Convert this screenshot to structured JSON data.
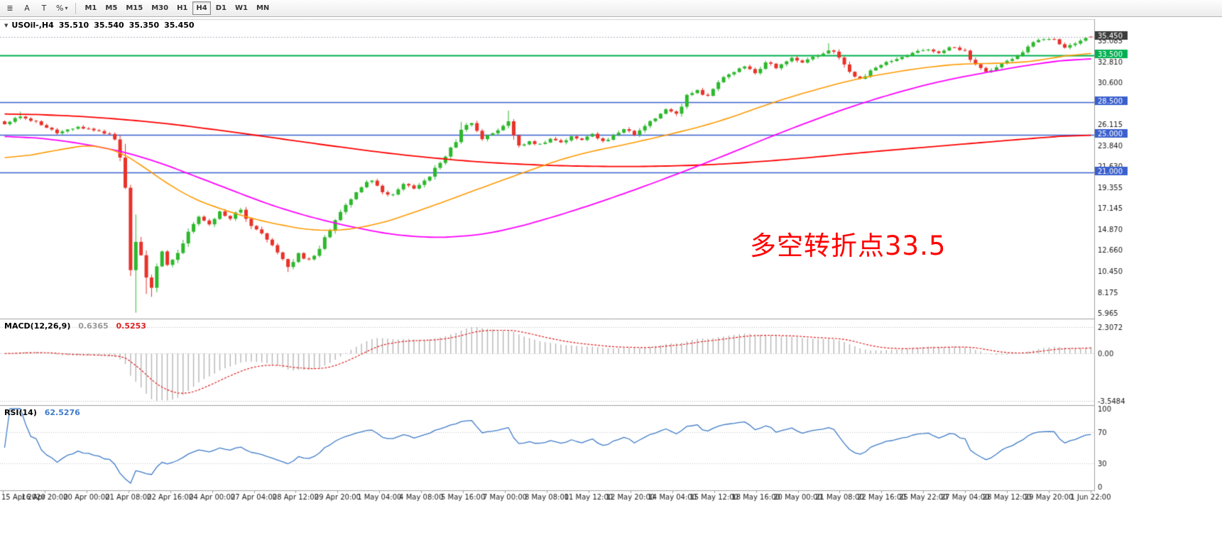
{
  "toolbar": {
    "icon_buttons": [
      {
        "name": "objects",
        "glyph": "≣"
      },
      {
        "name": "text",
        "glyph": "A"
      },
      {
        "name": "template",
        "glyph": "T"
      },
      {
        "name": "indicators",
        "glyph": "%"
      }
    ],
    "dropdown_caret": "▾",
    "timeframes": [
      {
        "label": "M1",
        "active": false
      },
      {
        "label": "M5",
        "active": false
      },
      {
        "label": "M15",
        "active": false
      },
      {
        "label": "M30",
        "active": false
      },
      {
        "label": "H1",
        "active": false
      },
      {
        "label": "H4",
        "active": true
      },
      {
        "label": "D1",
        "active": false
      },
      {
        "label": "W1",
        "active": false
      },
      {
        "label": "MN",
        "active": false
      }
    ]
  },
  "chart_header": {
    "collapse_icon": "▼",
    "symbol": "USOil-,H4",
    "open": "35.510",
    "high": "35.540",
    "low": "35.350",
    "close": "35.450"
  },
  "main_chart": {
    "annotation": {
      "text": "多空转折点33.5",
      "color": "#FF0000"
    },
    "current_price": {
      "label": "35.450",
      "value": 35.45,
      "box_color": "#3c3c3c"
    },
    "hlines": [
      {
        "value": 33.5,
        "label": "33.500",
        "color": "#00B050",
        "width": 2
      },
      {
        "value": 28.5,
        "label": "28.500",
        "color": "#3A5FCD",
        "width": 1.6
      },
      {
        "value": 25.0,
        "label": "25.000",
        "color": "#3A5FCD",
        "width": 1.6
      },
      {
        "value": 21.0,
        "label": "21.000",
        "color": "#3A5FCD",
        "width": 1.6
      }
    ],
    "price_ticks": [
      "35.085",
      "32.810",
      "30.600",
      "26.115",
      "23.840",
      "21.630",
      "19.355",
      "17.145",
      "14.870",
      "12.660",
      "10.450",
      "8.175",
      "5.965"
    ],
    "price_top": 37.3,
    "price_bottom": 5.45
  },
  "macd_panel": {
    "label": "MACD(12,26,9)",
    "main_value": "0.6365",
    "signal_value": "0.5253",
    "ticks": {
      "top": "2.3072",
      "zero": "0.00",
      "bottom": "-3.5484"
    },
    "colors": {
      "hist": "#b5b5b5",
      "signal": "#e02020"
    }
  },
  "rsi_panel": {
    "label": "RSI(14)",
    "value": "62.5276",
    "ticks": [
      "100",
      "70",
      "30",
      "0"
    ],
    "levels": [
      70,
      30
    ],
    "color": "#3e7bc8"
  },
  "time_axis": [
    "15 Apr 2020",
    "16 Apr 20:00",
    "20 Apr 00:00",
    "21 Apr 08:00",
    "22 Apr 16:00",
    "24 Apr 00:00",
    "27 Apr 04:00",
    "28 Apr 12:00",
    "29 Apr 20:00",
    "1 May 04:00",
    "4 May 08:00",
    "5 May 16:00",
    "7 May 00:00",
    "8 May 08:00",
    "11 May 12:00",
    "12 May 20:00",
    "14 May 04:00",
    "15 May 12:00",
    "18 May 16:00",
    "20 May 00:00",
    "21 May 08:00",
    "22 May 16:00",
    "25 May 22:00",
    "27 May 04:00",
    "28 May 12:00",
    "29 May 20:00",
    "1 Jun 22:00"
  ],
  "chart_data": {
    "type": "candlestick",
    "symbol": "USOil",
    "timeframe": "H4",
    "ohlc_current": {
      "open": 35.51,
      "high": 35.54,
      "low": 35.35,
      "close": 35.45
    },
    "bars": 208,
    "noise_seed": 12,
    "price_keyframes": [
      [
        0,
        26.2
      ],
      [
        2,
        26.8
      ],
      [
        3,
        27.0
      ],
      [
        5,
        26.6
      ],
      [
        7,
        26.1
      ],
      [
        10,
        25.2
      ],
      [
        12,
        25.5
      ],
      [
        14,
        25.9
      ],
      [
        16,
        25.6
      ],
      [
        18,
        25.4
      ],
      [
        20,
        25.0
      ],
      [
        21,
        24.6
      ],
      [
        22,
        23.0
      ],
      [
        23,
        20.0
      ],
      [
        24,
        10.5
      ],
      [
        25,
        13.5
      ],
      [
        26,
        11.8
      ],
      [
        27,
        9.8
      ],
      [
        28,
        8.6
      ],
      [
        29,
        11.0
      ],
      [
        30,
        12.6
      ],
      [
        31,
        11.2
      ],
      [
        32,
        11.8
      ],
      [
        33,
        12.5
      ],
      [
        34,
        13.4
      ],
      [
        35,
        14.5
      ],
      [
        36,
        15.4
      ],
      [
        37,
        16.3
      ],
      [
        38,
        15.8
      ],
      [
        39,
        15.5
      ],
      [
        40,
        16.2
      ],
      [
        41,
        16.9
      ],
      [
        42,
        16.4
      ],
      [
        43,
        16.0
      ],
      [
        44,
        16.6
      ],
      [
        45,
        17.1
      ],
      [
        46,
        16.2
      ],
      [
        47,
        15.3
      ],
      [
        48,
        14.9
      ],
      [
        49,
        14.5
      ],
      [
        50,
        13.8
      ],
      [
        51,
        13.2
      ],
      [
        52,
        12.5
      ],
      [
        53,
        11.9
      ],
      [
        54,
        10.9
      ],
      [
        55,
        11.6
      ],
      [
        56,
        12.3
      ],
      [
        57,
        11.9
      ],
      [
        58,
        11.6
      ],
      [
        59,
        12.2
      ],
      [
        60,
        13.0
      ],
      [
        61,
        13.9
      ],
      [
        62,
        14.8
      ],
      [
        63,
        15.8
      ],
      [
        64,
        16.9
      ],
      [
        65,
        17.5
      ],
      [
        66,
        18.0
      ],
      [
        67,
        18.7
      ],
      [
        68,
        19.4
      ],
      [
        69,
        19.9
      ],
      [
        70,
        20.2
      ],
      [
        71,
        19.6
      ],
      [
        72,
        19.0
      ],
      [
        73,
        18.7
      ],
      [
        74,
        18.6
      ],
      [
        75,
        19.2
      ],
      [
        76,
        19.8
      ],
      [
        77,
        19.5
      ],
      [
        78,
        19.3
      ],
      [
        79,
        19.7
      ],
      [
        80,
        20.1
      ],
      [
        81,
        20.7
      ],
      [
        82,
        21.4
      ],
      [
        83,
        22.1
      ],
      [
        84,
        22.8
      ],
      [
        85,
        23.5
      ],
      [
        86,
        24.2
      ],
      [
        87,
        25.7
      ],
      [
        88,
        26.0
      ],
      [
        89,
        26.2
      ],
      [
        90,
        25.4
      ],
      [
        91,
        24.6
      ],
      [
        92,
        24.9
      ],
      [
        93,
        25.2
      ],
      [
        94,
        25.5
      ],
      [
        95,
        25.9
      ],
      [
        96,
        26.6
      ],
      [
        97,
        25.0
      ],
      [
        98,
        23.8
      ],
      [
        99,
        24.0
      ],
      [
        100,
        24.3
      ],
      [
        101,
        24.1
      ],
      [
        102,
        24.0
      ],
      [
        103,
        24.3
      ],
      [
        104,
        24.6
      ],
      [
        105,
        24.4
      ],
      [
        106,
        24.2
      ],
      [
        107,
        24.5
      ],
      [
        108,
        24.9
      ],
      [
        109,
        24.6
      ],
      [
        110,
        24.4
      ],
      [
        111,
        24.8
      ],
      [
        112,
        25.1
      ],
      [
        113,
        24.7
      ],
      [
        114,
        24.3
      ],
      [
        115,
        24.6
      ],
      [
        116,
        24.9
      ],
      [
        117,
        25.3
      ],
      [
        118,
        25.7
      ],
      [
        119,
        25.4
      ],
      [
        120,
        25.1
      ],
      [
        121,
        25.6
      ],
      [
        122,
        26.0
      ],
      [
        123,
        26.4
      ],
      [
        124,
        26.9
      ],
      [
        125,
        27.4
      ],
      [
        126,
        27.8
      ],
      [
        127,
        27.5
      ],
      [
        128,
        27.2
      ],
      [
        129,
        28.2
      ],
      [
        130,
        29.2
      ],
      [
        131,
        29.5
      ],
      [
        132,
        29.8
      ],
      [
        133,
        29.4
      ],
      [
        134,
        29.1
      ],
      [
        135,
        29.9
      ],
      [
        136,
        30.7
      ],
      [
        137,
        31.1
      ],
      [
        138,
        31.5
      ],
      [
        139,
        31.8
      ],
      [
        140,
        32.1
      ],
      [
        141,
        32.4
      ],
      [
        142,
        32.0
      ],
      [
        143,
        31.6
      ],
      [
        144,
        32.2
      ],
      [
        145,
        32.8
      ],
      [
        146,
        32.5
      ],
      [
        147,
        32.2
      ],
      [
        148,
        32.6
      ],
      [
        149,
        32.9
      ],
      [
        150,
        33.2
      ],
      [
        151,
        32.9
      ],
      [
        152,
        32.7
      ],
      [
        153,
        33.0
      ],
      [
        154,
        33.3
      ],
      [
        155,
        33.5
      ],
      [
        156,
        33.8
      ],
      [
        157,
        34.1
      ],
      [
        158,
        33.8
      ],
      [
        159,
        33.4
      ],
      [
        160,
        32.5
      ],
      [
        161,
        31.6
      ],
      [
        162,
        31.3
      ],
      [
        163,
        31.0
      ],
      [
        164,
        31.4
      ],
      [
        165,
        31.8
      ],
      [
        166,
        32.1
      ],
      [
        167,
        32.5
      ],
      [
        168,
        32.7
      ],
      [
        169,
        32.9
      ],
      [
        170,
        33.1
      ],
      [
        171,
        33.3
      ],
      [
        172,
        33.5
      ],
      [
        173,
        33.8
      ],
      [
        174,
        34.0
      ],
      [
        175,
        34.1
      ],
      [
        176,
        34.2
      ],
      [
        177,
        34.0
      ],
      [
        178,
        33.8
      ],
      [
        179,
        34.1
      ],
      [
        180,
        34.3
      ],
      [
        181,
        34.4
      ],
      [
        182,
        34.1
      ],
      [
        183,
        33.9
      ],
      [
        184,
        33.2
      ],
      [
        185,
        32.6
      ],
      [
        186,
        32.1
      ],
      [
        187,
        31.7
      ],
      [
        188,
        32.0
      ],
      [
        189,
        32.3
      ],
      [
        190,
        32.7
      ],
      [
        191,
        33.0
      ],
      [
        192,
        33.2
      ],
      [
        193,
        33.5
      ],
      [
        194,
        33.9
      ],
      [
        195,
        34.3
      ],
      [
        196,
        34.9
      ],
      [
        197,
        35.1
      ],
      [
        198,
        35.2
      ],
      [
        199,
        35.25
      ],
      [
        200,
        35.3
      ],
      [
        201,
        34.8
      ],
      [
        202,
        34.3
      ],
      [
        203,
        34.55
      ],
      [
        204,
        34.8
      ],
      [
        205,
        35.1
      ],
      [
        206,
        35.3
      ],
      [
        207,
        35.45
      ]
    ],
    "wick_overrides": [
      {
        "i": 3,
        "h": 27.5
      },
      {
        "i": 25,
        "l": 6.0,
        "h": 16.5
      },
      {
        "i": 27,
        "l": 8.0
      },
      {
        "i": 28,
        "l": 7.7
      },
      {
        "i": 54,
        "l": 10.35
      },
      {
        "i": 87,
        "h": 26.4
      },
      {
        "i": 96,
        "h": 27.6
      },
      {
        "i": 157,
        "h": 34.8
      }
    ],
    "last_bar": {
      "o": 35.51,
      "h": 35.54,
      "l": 35.35,
      "c": 35.45
    },
    "ma_red_keyframes": [
      [
        0,
        27.3
      ],
      [
        15,
        27.0
      ],
      [
        30,
        26.3
      ],
      [
        45,
        25.2
      ],
      [
        60,
        24.0
      ],
      [
        75,
        22.9
      ],
      [
        90,
        22.1
      ],
      [
        105,
        21.7
      ],
      [
        120,
        21.6
      ],
      [
        135,
        21.8
      ],
      [
        150,
        22.4
      ],
      [
        165,
        23.2
      ],
      [
        180,
        23.9
      ],
      [
        195,
        24.6
      ],
      [
        207,
        25.1
      ]
    ],
    "ma_magenta_keyframes": [
      [
        0,
        25.0
      ],
      [
        13,
        24.3
      ],
      [
        26,
        22.8
      ],
      [
        40,
        19.8
      ],
      [
        53,
        17.0
      ],
      [
        67,
        15.0
      ],
      [
        78,
        14.0
      ],
      [
        88,
        14.1
      ],
      [
        95,
        14.7
      ],
      [
        108,
        16.8
      ],
      [
        121,
        19.3
      ],
      [
        135,
        22.3
      ],
      [
        148,
        25.3
      ],
      [
        162,
        28.2
      ],
      [
        176,
        30.5
      ],
      [
        189,
        31.9
      ],
      [
        200,
        32.9
      ],
      [
        207,
        33.3
      ]
    ],
    "ma_orange_keyframes": [
      [
        0,
        22.3
      ],
      [
        10,
        23.4
      ],
      [
        19,
        24.2
      ],
      [
        27,
        21.5
      ],
      [
        34,
        18.5
      ],
      [
        47,
        16.0
      ],
      [
        60,
        14.6
      ],
      [
        70,
        15.2
      ],
      [
        81,
        17.3
      ],
      [
        94,
        20.0
      ],
      [
        108,
        22.8
      ],
      [
        121,
        24.3
      ],
      [
        135,
        26.2
      ],
      [
        148,
        28.8
      ],
      [
        162,
        31.0
      ],
      [
        176,
        32.3
      ],
      [
        185,
        32.7
      ],
      [
        192,
        32.6
      ],
      [
        200,
        33.2
      ],
      [
        207,
        34.0
      ]
    ],
    "indicators": {
      "macd": "MACD(12,26,9)",
      "rsi": "RSI(14)"
    },
    "colors": {
      "up": "#2DB82D",
      "down": "#E8322A",
      "ma_red": "#FF0000",
      "ma_magenta": "#FF00FF",
      "ma_orange": "#FF9900"
    }
  }
}
